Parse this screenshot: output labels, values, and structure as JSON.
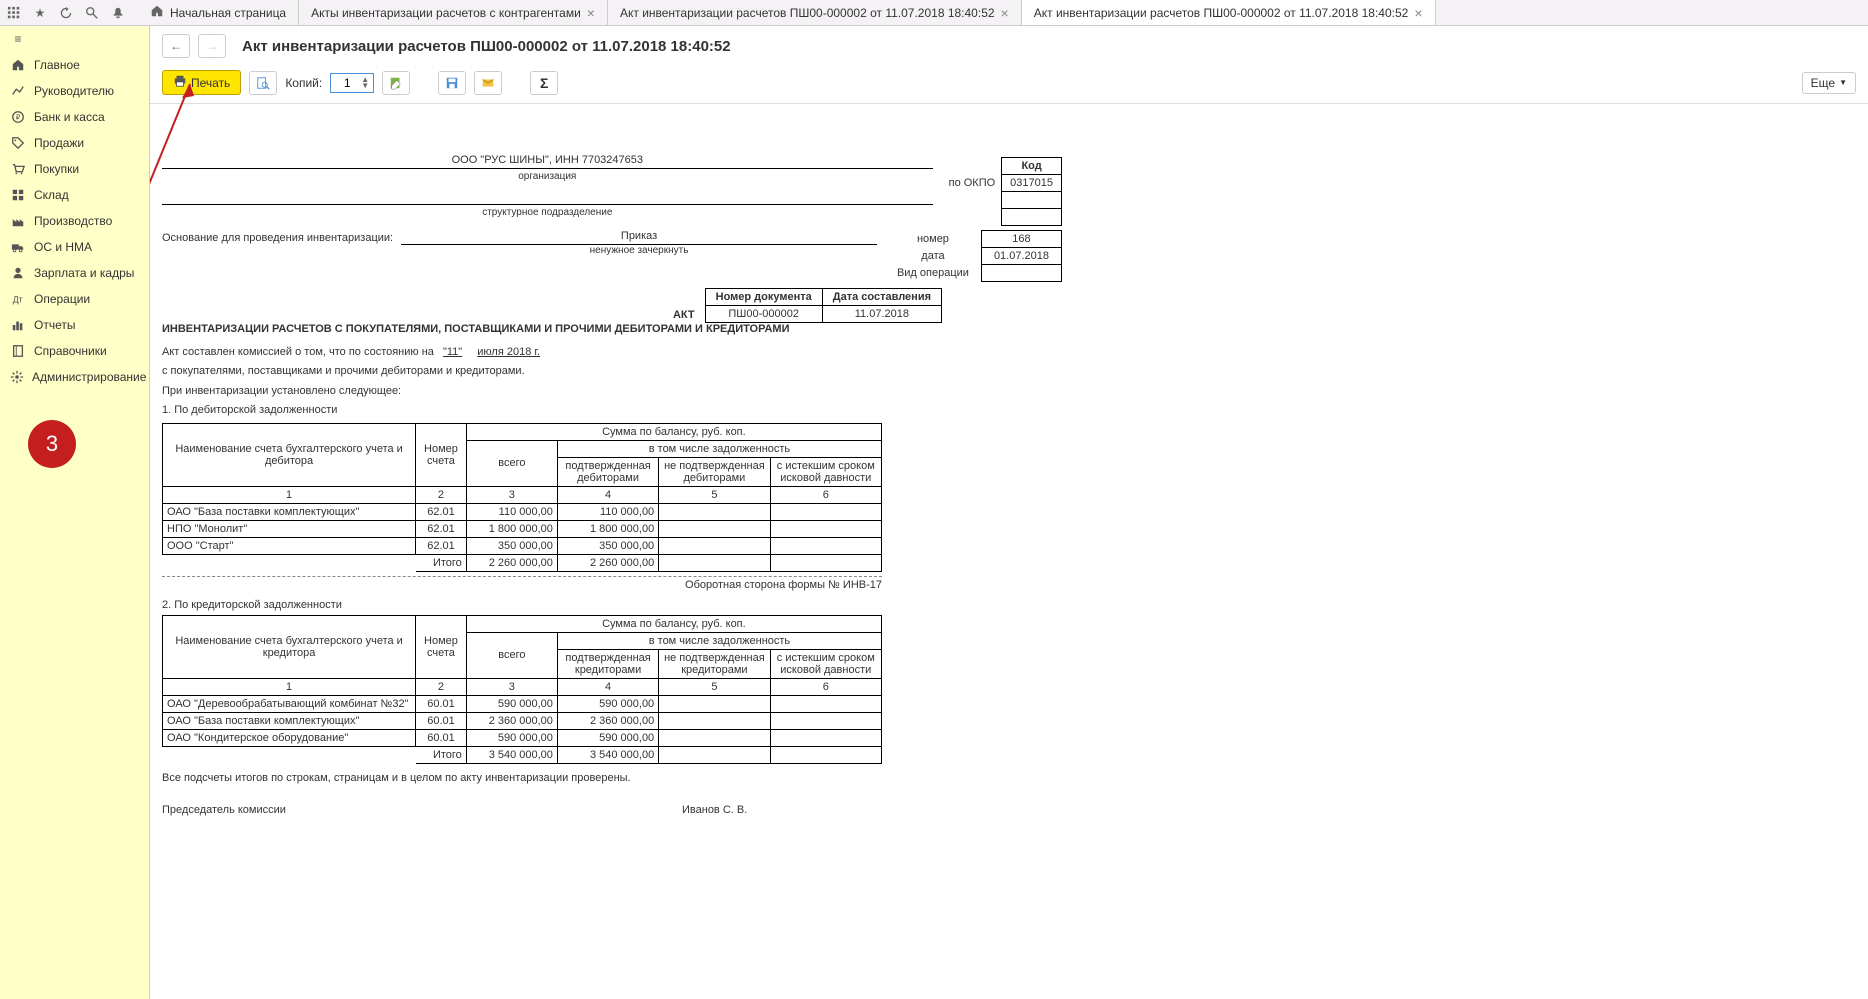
{
  "tabs": {
    "home": "Начальная страница",
    "t1": "Акты инвентаризации расчетов с контрагентами",
    "t2": "Акт инвентаризации расчетов ПШ00-000002 от 11.07.2018 18:40:52",
    "t3": "Акт инвентаризации расчетов ПШ00-000002 от 11.07.2018 18:40:52"
  },
  "sidebar": {
    "items": [
      {
        "label": "Главное",
        "icon": "home"
      },
      {
        "label": "Руководителю",
        "icon": "chart"
      },
      {
        "label": "Банк и касса",
        "icon": "coin"
      },
      {
        "label": "Продажи",
        "icon": "tag"
      },
      {
        "label": "Покупки",
        "icon": "cart"
      },
      {
        "label": "Склад",
        "icon": "boxes"
      },
      {
        "label": "Производство",
        "icon": "factory"
      },
      {
        "label": "ОС и НМА",
        "icon": "truck"
      },
      {
        "label": "Зарплата и кадры",
        "icon": "person"
      },
      {
        "label": "Операции",
        "icon": "ops"
      },
      {
        "label": "Отчеты",
        "icon": "bars"
      },
      {
        "label": "Справочники",
        "icon": "book"
      },
      {
        "label": "Администрирование",
        "icon": "gear"
      }
    ]
  },
  "page": {
    "title": "Акт инвентаризации расчетов ПШ00-000002 от 11.07.2018 18:40:52",
    "print": "Печать",
    "copies_label": "Копий:",
    "copies_value": "1",
    "more": "Еще"
  },
  "doc": {
    "org": "ООО \"РУС ШИНЫ\", ИНН 7703247653",
    "org_sub": "организация",
    "struct_sub": "структурное подразделение",
    "okpo_lbl": "по ОКПО",
    "code_hdr": "Код",
    "okpo_val": "0317015",
    "basis_lbl": "Основание для проведения инвентаризации:",
    "prikaz": "Приказ",
    "prikaz_sub": "ненужное зачеркнуть",
    "num_lbl": "номер",
    "num_val": "168",
    "date_lbl": "дата",
    "date_val": "01.07.2018",
    "vid_lbl": "Вид операции",
    "docnum_hdr1": "Номер документа",
    "docnum_hdr2": "Дата составления",
    "docnum_val1": "ПШ00-000002",
    "docnum_val2": "11.07.2018",
    "akt": "АКТ",
    "akt_sub": "ИНВЕНТАРИЗАЦИИ РАСЧЕТОВ С ПОКУПАТЕЛЯМИ, ПОСТАВЩИКАМИ И ПРОЧИМИ ДЕБИТОРАМИ И КРЕДИТОРАМИ",
    "body1_a": "Акт составлен комиссией о том, что по состоянию на",
    "body1_day": "\"11\"",
    "body1_month": "июля 2018 г.",
    "body2": "с покупателями, поставщиками и прочими дебиторами и кредиторами.",
    "body3": "При инвентаризации установлено следующее:",
    "sec1": "1.  По дебиторской задолженности",
    "sec2": "2.  По кредиторской задолженности",
    "th_name1": "Наименование счета бухгалтерского учета и дебитора",
    "th_name2": "Наименование счета бухгалтерского учета и кредитора",
    "th_acct": "Номер счета",
    "th_sum": "Сумма по балансу, руб. коп.",
    "th_total": "всего",
    "th_incl": "в том числе задолженность",
    "th_conf1": "подтвержденная дебиторами",
    "th_nconf1": "не подтвержденная дебиторами",
    "th_conf2": "подтвержденная кредиторами",
    "th_nconf2": "не подтвержденная кредиторами",
    "th_exp": "с истекшим сроком исковой давности",
    "c1": "1",
    "c2": "2",
    "c3": "3",
    "c4": "4",
    "c5": "5",
    "c6": "6",
    "itogo": "Итого",
    "debtors": [
      {
        "name": "ОАО \"База поставки комплектующих\"",
        "acct": "62.01",
        "total": "110 000,00",
        "conf": "110 000,00"
      },
      {
        "name": "НПО \"Монолит\"",
        "acct": "62.01",
        "total": "1 800 000,00",
        "conf": "1 800 000,00"
      },
      {
        "name": "ООО \"Старт\"",
        "acct": "62.01",
        "total": "350 000,00",
        "conf": "350 000,00"
      }
    ],
    "debtors_total": {
      "total": "2 260 000,00",
      "conf": "2 260 000,00"
    },
    "creditors": [
      {
        "name": "ОАО \"Деревообрабатывающий комбинат №32\"",
        "acct": "60.01",
        "total": "590 000,00",
        "conf": "590 000,00"
      },
      {
        "name": "ОАО \"База поставки комплектующих\"",
        "acct": "60.01",
        "total": "2 360 000,00",
        "conf": "2 360 000,00"
      },
      {
        "name": "ОАО \"Кондитерское оборудование\"",
        "acct": "60.01",
        "total": "590 000,00",
        "conf": "590 000,00"
      }
    ],
    "creditors_total": {
      "total": "3 540 000,00",
      "conf": "3 540 000,00"
    },
    "form_note": "Оборотная сторона формы № ИНВ-17",
    "footer_text": "Все подсчеты итогов по строкам, страницам и в целом по акту инвентаризации проверены.",
    "chair_lbl": "Председатель комиссии",
    "chair_name": "Иванов С. В."
  },
  "annotation": {
    "badge": "3",
    "badge_color": "#c41e1e"
  }
}
